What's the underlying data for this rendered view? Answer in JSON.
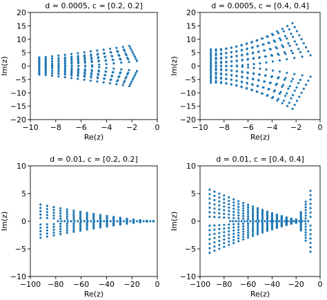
{
  "chart_data": [
    {
      "type": "scatter",
      "title": "d = 0.0005,   c = [0.2, 0.2]",
      "xlabel": "Re(z)",
      "ylabel": "Im(z)",
      "xlim": [
        -10,
        0
      ],
      "ylim": [
        -20,
        20
      ],
      "xticks": [
        -10,
        -8,
        -6,
        -4,
        -2,
        0
      ],
      "yticks": [
        -20,
        -15,
        -10,
        -5,
        0,
        5,
        10,
        15,
        20
      ],
      "color": "#1f77b4",
      "curve_family": {
        "kind": "mirror",
        "x_left": -9.3,
        "x_right": -2.2,
        "x_min": -1.6,
        "y_edge": 7.5,
        "n_curves": 8,
        "n_points": 15,
        "start_spread": [
          0,
          3.2
        ],
        "bulge": 0.5
      }
    },
    {
      "type": "scatter",
      "title": "d = 0.0005,   c = [0.4, 0.4]",
      "xlabel": "Re(z)",
      "ylabel": "Im(z)",
      "xlim": [
        -10,
        0
      ],
      "ylim": [
        -20,
        20
      ],
      "xticks": [
        -10,
        -8,
        -6,
        -4,
        -2,
        0
      ],
      "yticks": [
        -20,
        -15,
        -10,
        -5,
        0,
        5,
        10,
        15,
        20
      ],
      "color": "#1f77b4",
      "curve_family": {
        "kind": "mirror",
        "x_left": -9.1,
        "x_right": -2.3,
        "x_min": -0.8,
        "y_edge": 16,
        "n_curves": 9,
        "n_points": 17,
        "start_spread": [
          0,
          6.2
        ],
        "bulge": 0.6
      }
    },
    {
      "type": "scatter",
      "title": "d = 0.01,   c = [0.2, 0.2]",
      "xlabel": "Re(z)",
      "ylabel": "Im(z)",
      "xlim": [
        -100,
        0
      ],
      "ylim": [
        -10,
        10
      ],
      "xticks": [
        -100,
        -80,
        -60,
        -40,
        -20,
        0
      ],
      "yticks": [
        -10,
        -5,
        0,
        5,
        10
      ],
      "color": "#1f77b4",
      "curve_family": {
        "kind": "funnel",
        "x_left": -92,
        "x_right": -3,
        "y_left": 3,
        "n_curves": 5,
        "n_points": 18
      }
    },
    {
      "type": "scatter",
      "title": "d = 0.01,   c = [0.4, 0.4]",
      "xlabel": "Re(z)",
      "ylabel": "Im(z)",
      "xlim": [
        -100,
        0
      ],
      "ylim": [
        -10,
        10
      ],
      "xticks": [
        -100,
        -80,
        -60,
        -40,
        -20,
        0
      ],
      "yticks": [
        -10,
        -5,
        0,
        5,
        10
      ],
      "color": "#1f77b4",
      "curve_family": {
        "kind": "bowtie",
        "x_left": -92,
        "x_neck": -20,
        "x_right": -8,
        "y_left": 6,
        "y_right": 5.5,
        "n_curves": 7,
        "n_points": 22
      }
    }
  ]
}
